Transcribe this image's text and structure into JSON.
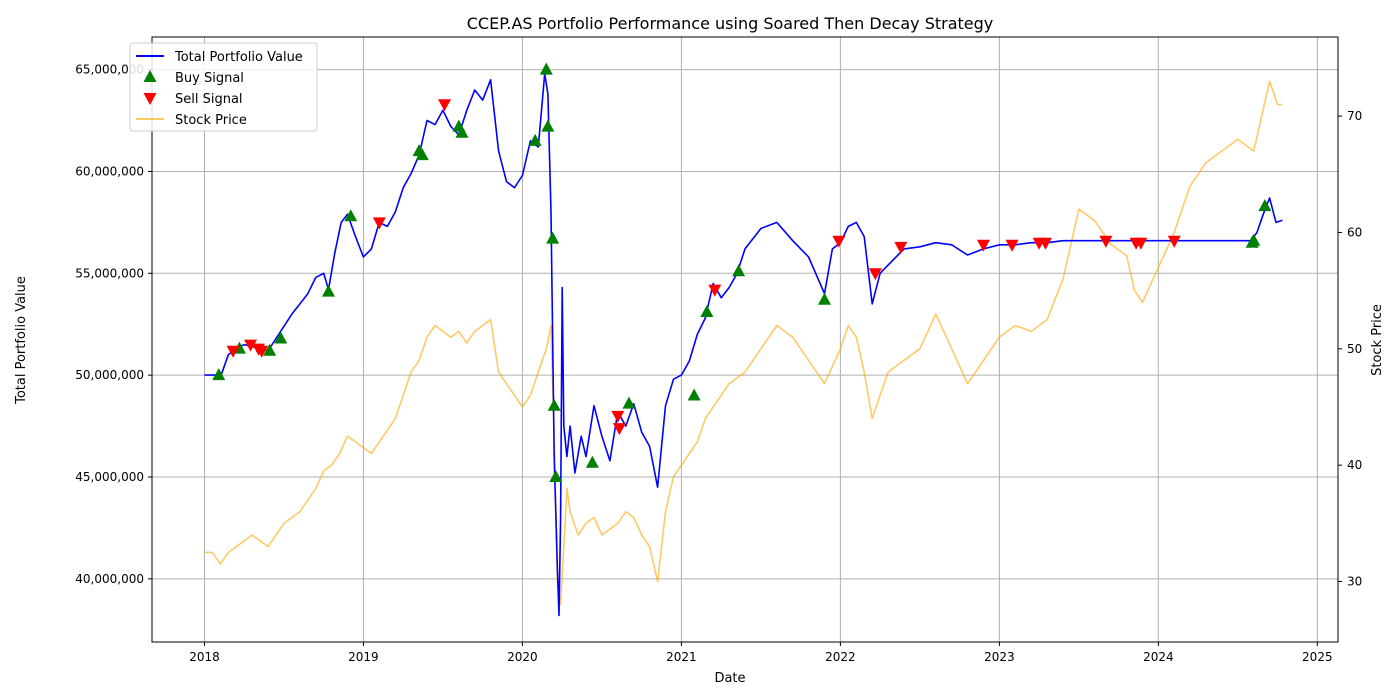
{
  "chart_data": {
    "type": "line",
    "title": "CCEP.AS Portfolio Performance using Soared Then Decay Strategy",
    "xlabel": "Date",
    "ylabel": "Total Portfolio Value",
    "ylabel_right": "Stock Price",
    "xlim": [
      2017.67,
      2025.13
    ],
    "ylim": [
      36900000,
      66600000
    ],
    "ylim_right": [
      24.8,
      76.8
    ],
    "x_ticks": [
      2018,
      2019,
      2020,
      2021,
      2022,
      2023,
      2024,
      2025
    ],
    "x_tick_labels": [
      "2018",
      "2019",
      "2020",
      "2021",
      "2022",
      "2023",
      "2024",
      "2025"
    ],
    "y_ticks": [
      40000000,
      45000000,
      50000000,
      55000000,
      60000000,
      65000000
    ],
    "y_tick_labels": [
      "40,000,000",
      "45,000,000",
      "50,000,000",
      "55,000,000",
      "60,000,000",
      "65,000,000"
    ],
    "y_ticks_right": [
      30,
      40,
      50,
      60,
      70
    ],
    "y_tick_labels_right": [
      "30",
      "40",
      "50",
      "60",
      "70"
    ],
    "grid": true,
    "legend_position": "top-left",
    "legend": [
      {
        "label": "Total Portfolio Value",
        "type": "line",
        "color": "#0000ff"
      },
      {
        "label": "Buy Signal",
        "type": "marker-up",
        "color": "#008000"
      },
      {
        "label": "Sell Signal",
        "type": "marker-down",
        "color": "#ff0000"
      },
      {
        "label": "Stock Price",
        "type": "line",
        "color": "#ffa500"
      }
    ],
    "series": [
      {
        "name": "Total Portfolio Value",
        "axis": "left",
        "color": "#0000ff",
        "x": [
          2018.0,
          2018.08,
          2018.1,
          2018.15,
          2018.2,
          2018.25,
          2018.3,
          2018.35,
          2018.4,
          2018.45,
          2018.5,
          2018.55,
          2018.6,
          2018.65,
          2018.7,
          2018.75,
          2018.78,
          2018.82,
          2018.86,
          2018.9,
          2018.95,
          2019.0,
          2019.05,
          2019.1,
          2019.15,
          2019.2,
          2019.25,
          2019.3,
          2019.35,
          2019.4,
          2019.45,
          2019.5,
          2019.55,
          2019.6,
          2019.65,
          2019.7,
          2019.75,
          2019.8,
          2019.85,
          2019.9,
          2019.95,
          2020.0,
          2020.05,
          2020.1,
          2020.14,
          2020.16,
          2020.18,
          2020.2,
          2020.22,
          2020.23,
          2020.24,
          2020.25,
          2020.26,
          2020.28,
          2020.3,
          2020.33,
          2020.37,
          2020.4,
          2020.45,
          2020.5,
          2020.55,
          2020.6,
          2020.65,
          2020.7,
          2020.75,
          2020.8,
          2020.85,
          2020.9,
          2020.95,
          2021.0,
          2021.05,
          2021.1,
          2021.15,
          2021.2,
          2021.25,
          2021.3,
          2021.35,
          2021.4,
          2021.5,
          2021.6,
          2021.7,
          2021.8,
          2021.9,
          2021.95,
          2022.0,
          2022.05,
          2022.1,
          2022.15,
          2022.2,
          2022.25,
          2022.3,
          2022.4,
          2022.5,
          2022.6,
          2022.7,
          2022.8,
          2022.9,
          2023.0,
          2023.1,
          2023.2,
          2023.3,
          2023.4,
          2024.0,
          2024.5,
          2024.58,
          2024.62,
          2024.66,
          2024.7,
          2024.74,
          2024.78
        ],
        "values": [
          50000000,
          50000000,
          49900000,
          51000000,
          51300000,
          51500000,
          51400000,
          51300000,
          51200000,
          51800000,
          52400000,
          53000000,
          53500000,
          54000000,
          54800000,
          55000000,
          54200000,
          56000000,
          57500000,
          57900000,
          56800000,
          55800000,
          56200000,
          57500000,
          57300000,
          58000000,
          59200000,
          59900000,
          60800000,
          62500000,
          62300000,
          63000000,
          62200000,
          61800000,
          63000000,
          64000000,
          63500000,
          64500000,
          61000000,
          59500000,
          59200000,
          59800000,
          61500000,
          61200000,
          64800000,
          63800000,
          58000000,
          46000000,
          40500000,
          38200000,
          43000000,
          54300000,
          47500000,
          46000000,
          47500000,
          45200000,
          47000000,
          46000000,
          48500000,
          47000000,
          45800000,
          48200000,
          47500000,
          48600000,
          47200000,
          46500000,
          44500000,
          48500000,
          49800000,
          50000000,
          50700000,
          52000000,
          52800000,
          54500000,
          53800000,
          54300000,
          55000000,
          56200000,
          57200000,
          57500000,
          56600000,
          55800000,
          54000000,
          56200000,
          56500000,
          57300000,
          57500000,
          56800000,
          53500000,
          55000000,
          55400000,
          56200000,
          56300000,
          56500000,
          56400000,
          55900000,
          56200000,
          56400000,
          56400000,
          56500000,
          56500000,
          56600000,
          56600000,
          56600000,
          56600000,
          57000000,
          57900000,
          58700000,
          57500000,
          57600000
        ]
      },
      {
        "name": "Stock Price",
        "axis": "right",
        "color": "#ffa500",
        "x": [
          2018.0,
          2018.05,
          2018.1,
          2018.15,
          2018.2,
          2018.25,
          2018.3,
          2018.35,
          2018.4,
          2018.45,
          2018.5,
          2018.55,
          2018.6,
          2018.65,
          2018.7,
          2018.75,
          2018.8,
          2018.85,
          2018.9,
          2018.95,
          2019.0,
          2019.05,
          2019.1,
          2019.15,
          2019.2,
          2019.25,
          2019.3,
          2019.35,
          2019.4,
          2019.45,
          2019.5,
          2019.55,
          2019.6,
          2019.65,
          2019.7,
          2019.75,
          2019.8,
          2019.85,
          2019.9,
          2019.95,
          2020.0,
          2020.05,
          2020.1,
          2020.15,
          2020.18,
          2020.2,
          2020.22,
          2020.24,
          2020.26,
          2020.28,
          2020.3,
          2020.35,
          2020.4,
          2020.45,
          2020.5,
          2020.55,
          2020.6,
          2020.65,
          2020.7,
          2020.75,
          2020.8,
          2020.85,
          2020.9,
          2020.95,
          2021.0,
          2021.05,
          2021.1,
          2021.15,
          2021.2,
          2021.3,
          2021.4,
          2021.5,
          2021.6,
          2021.7,
          2021.8,
          2021.9,
          2022.0,
          2022.05,
          2022.1,
          2022.15,
          2022.2,
          2022.25,
          2022.3,
          2022.4,
          2022.5,
          2022.6,
          2022.7,
          2022.8,
          2022.9,
          2023.0,
          2023.1,
          2023.2,
          2023.25,
          2023.3,
          2023.4,
          2023.5,
          2023.6,
          2023.7,
          2023.8,
          2023.85,
          2023.9,
          2024.0,
          2024.1,
          2024.2,
          2024.3,
          2024.4,
          2024.5,
          2024.6,
          2024.65,
          2024.7,
          2024.75,
          2024.78
        ],
        "values": [
          32.5,
          32.5,
          31.5,
          32.5,
          33,
          33.5,
          34,
          33.5,
          33,
          34,
          35,
          35.5,
          36,
          37,
          38,
          39.5,
          40,
          41,
          42.5,
          42,
          41.5,
          41,
          42,
          43,
          44,
          46,
          48,
          49,
          51,
          52,
          51.5,
          51,
          51.5,
          50.5,
          51.5,
          52,
          52.5,
          48,
          47,
          46,
          45,
          46,
          48,
          50,
          52,
          42,
          30,
          28,
          33,
          38,
          36,
          34,
          35,
          35.5,
          34,
          34.5,
          35,
          36,
          35.5,
          34,
          33,
          30,
          36,
          39,
          40,
          41,
          42,
          44,
          45,
          47,
          48,
          50,
          52,
          51,
          49,
          47,
          50,
          52,
          51,
          48,
          44,
          46,
          48,
          49,
          50,
          53,
          50,
          47,
          49,
          51,
          52,
          51.5,
          52,
          52.5,
          56,
          62,
          61,
          59,
          58,
          55,
          54,
          57,
          60,
          64,
          66,
          67,
          68,
          67,
          70,
          73,
          71,
          71
        ]
      }
    ],
    "buy_signals": {
      "name": "Buy Signal",
      "color": "#008000",
      "x": [
        2018.09,
        2018.22,
        2018.41,
        2018.48,
        2018.78,
        2018.92,
        2019.35,
        2019.37,
        2019.6,
        2019.62,
        2020.08,
        2020.15,
        2020.16,
        2020.19,
        2020.2,
        2020.21,
        2020.44,
        2020.67,
        2021.08,
        2021.16,
        2021.36,
        2021.9,
        2024.59,
        2024.6,
        2024.67
      ],
      "values": [
        50000000,
        51300000,
        51200000,
        51800000,
        54100000,
        57800000,
        61000000,
        60800000,
        62200000,
        61900000,
        61500000,
        65000000,
        62200000,
        56700000,
        48500000,
        45000000,
        45700000,
        48600000,
        49000000,
        53100000,
        55100000,
        53700000,
        56500000,
        56600000,
        58300000
      ]
    },
    "sell_signals": {
      "name": "Sell Signal",
      "color": "#ff0000",
      "x": [
        2018.18,
        2018.29,
        2018.34,
        2018.36,
        2019.1,
        2019.51,
        2020.6,
        2020.61,
        2021.21,
        2021.99,
        2022.22,
        2022.38,
        2022.9,
        2023.08,
        2023.25,
        2023.29,
        2023.67,
        2023.86,
        2023.89,
        2024.1
      ],
      "values": [
        51200000,
        51500000,
        51300000,
        51200000,
        57500000,
        63300000,
        48000000,
        47400000,
        54200000,
        56600000,
        55000000,
        56300000,
        56400000,
        56400000,
        56500000,
        56500000,
        56600000,
        56500000,
        56500000,
        56600000
      ]
    }
  }
}
